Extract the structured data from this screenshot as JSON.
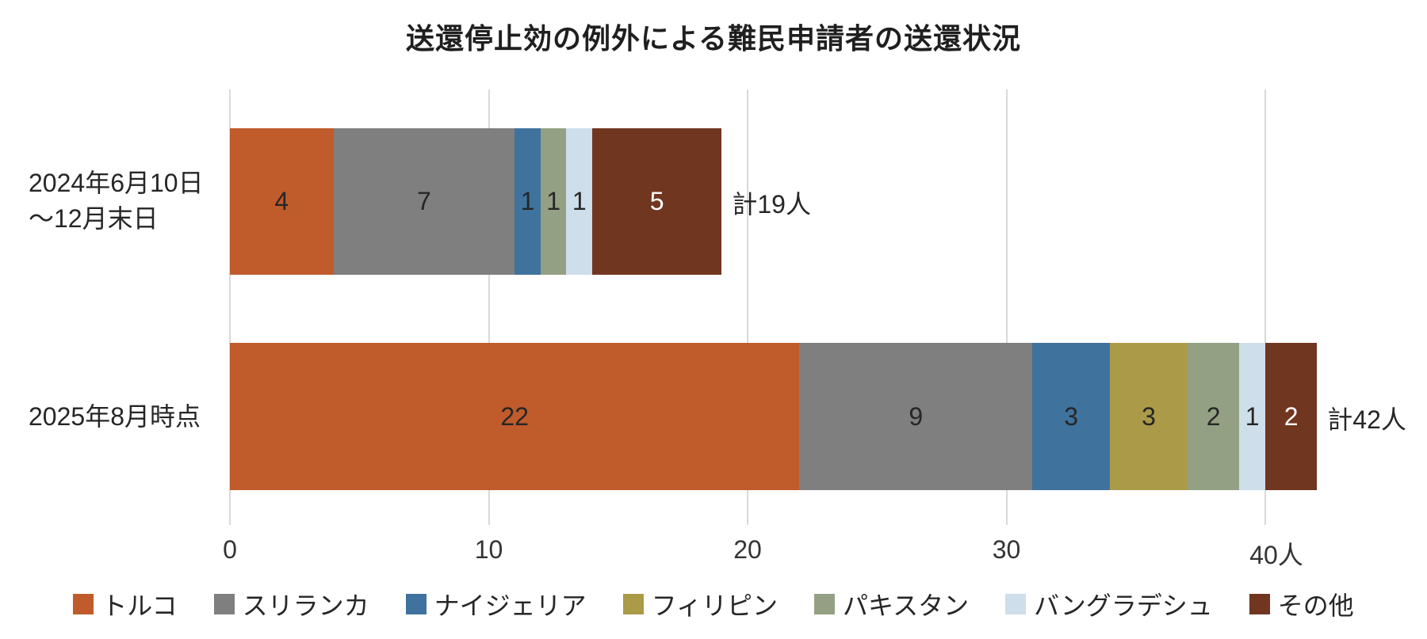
{
  "title": "送還停止効の例外による難民申請者の送還状況",
  "chart_data": {
    "type": "bar",
    "orientation": "horizontal",
    "stacked": true,
    "grid": true,
    "legend_position": "bottom",
    "categories": [
      "2024年6月10日\n〜12月末日",
      "2025年8月時点"
    ],
    "series": [
      {
        "id": "turkey",
        "name": "トルコ",
        "color": "#C05B2C",
        "label_color": "#262626",
        "values": [
          4,
          22
        ]
      },
      {
        "id": "sri-lanka",
        "name": "スリランカ",
        "color": "#7F7F7F",
        "label_color": "#262626",
        "values": [
          7,
          9
        ]
      },
      {
        "id": "nigeria",
        "name": "ナイジェリア",
        "color": "#3F739D",
        "label_color": "#262626",
        "values": [
          1,
          3
        ]
      },
      {
        "id": "philippines",
        "name": "フィリピン",
        "color": "#AB9A48",
        "label_color": "#262626",
        "values": [
          0,
          3
        ]
      },
      {
        "id": "pakistan",
        "name": "パキスタン",
        "color": "#94A084",
        "label_color": "#262626",
        "values": [
          1,
          2
        ]
      },
      {
        "id": "bangladesh",
        "name": "バングラデシュ",
        "color": "#CEDEEA",
        "label_color": "#262626",
        "values": [
          1,
          1
        ]
      },
      {
        "id": "other",
        "name": "その他",
        "color": "#713620",
        "label_color": "#FFFFFF",
        "values": [
          5,
          2
        ]
      }
    ],
    "totals": [
      "計19人",
      "計42人"
    ],
    "x_axis": {
      "ticks": [
        0,
        10,
        20,
        30,
        40
      ],
      "tick_labels": [
        "0",
        "10",
        "20",
        "30",
        "40人"
      ],
      "max": 40
    }
  },
  "colors": {
    "background": "#FFFFFF",
    "gridline": "#D9D9D9",
    "text": "#262626",
    "tick_text": "#333333"
  }
}
